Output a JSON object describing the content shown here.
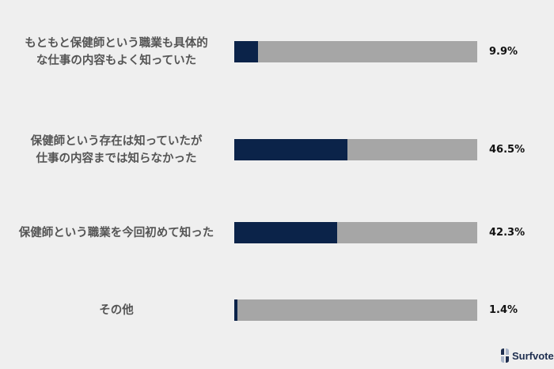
{
  "chart_data": {
    "type": "bar",
    "orientation": "horizontal",
    "categories": [
      "もともと保健師という職業も具体的\nな仕事の内容もよく知っていた",
      "保健師という存在は知っていたが\n仕事の内容までは知らなかった",
      "保健師という職業を今回初めて知った",
      "その他"
    ],
    "values": [
      9.9,
      46.5,
      42.3,
      1.4
    ],
    "value_labels": [
      "9.9%",
      "46.5%",
      "42.3%",
      "1.4%"
    ],
    "xlim": [
      0,
      100
    ],
    "colors": {
      "fill": "#0b2349",
      "track": "#a6a6a6",
      "background": "#efefef"
    },
    "grid": false
  },
  "brand": {
    "name": "Surfvote"
  }
}
